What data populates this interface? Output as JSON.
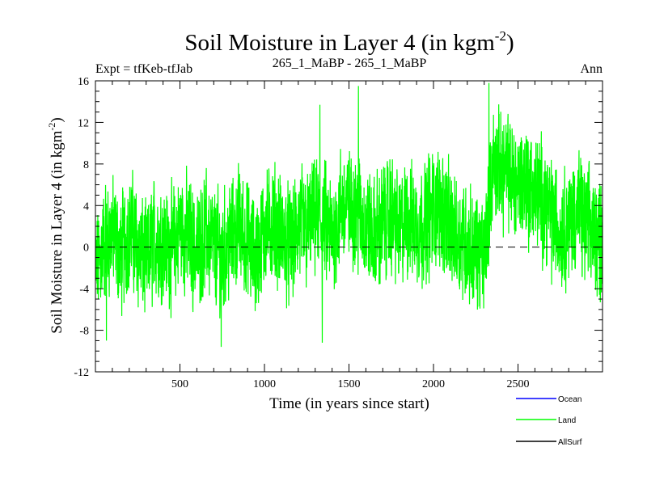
{
  "chart_data": {
    "type": "line",
    "title": "Soil Moisture in Layer 4 (in kgm",
    "title_sup": "-2",
    "title_end": ")",
    "left_label": "Expt = tfKeb-tfJab",
    "center_label": "265_1_MaBP - 265_1_MaBP",
    "right_label": "Ann",
    "xlabel": "Time (in years since start)",
    "ylabel": "Soil Moisture in Layer 4 (in kgm",
    "ylabel_sup": "-2",
    "ylabel_end": ")",
    "xlim": [
      0,
      3000
    ],
    "ylim": [
      -12,
      16
    ],
    "x_ticks": [
      500,
      1000,
      1500,
      2000,
      2500
    ],
    "y_ticks": [
      -12,
      -8,
      -4,
      0,
      4,
      8,
      12,
      16
    ],
    "reference_line": 0,
    "legend_position": "bottom-right",
    "series": [
      {
        "name": "Ocean",
        "color": "#0000ff",
        "values": []
      },
      {
        "name": "Land",
        "color": "#00ff00",
        "x": [
          0,
          50,
          100,
          150,
          200,
          250,
          300,
          350,
          400,
          450,
          500,
          550,
          600,
          650,
          700,
          750,
          800,
          850,
          900,
          950,
          1000,
          1050,
          1100,
          1150,
          1200,
          1250,
          1300,
          1350,
          1400,
          1450,
          1500,
          1550,
          1600,
          1650,
          1700,
          1750,
          1800,
          1850,
          1900,
          1950,
          2000,
          2050,
          2100,
          2150,
          2200,
          2250,
          2300,
          2350,
          2400,
          2450,
          2500,
          2550,
          2600,
          2650,
          2700,
          2750,
          2800,
          2850,
          2900,
          2950,
          3000
        ],
        "values": [
          -2.5,
          0.5,
          1.5,
          -1.0,
          2.0,
          0.0,
          -1.5,
          1.0,
          0.5,
          -0.5,
          2.0,
          1.0,
          -0.5,
          1.5,
          0.0,
          -1.0,
          1.0,
          2.0,
          0.5,
          -1.0,
          1.5,
          2.5,
          1.0,
          0.0,
          2.0,
          1.5,
          3.0,
          2.0,
          1.0,
          3.5,
          4.0,
          3.5,
          2.0,
          1.0,
          2.5,
          3.0,
          1.5,
          3.0,
          2.0,
          2.5,
          3.5,
          4.0,
          1.5,
          1.0,
          0.5,
          -0.5,
          -1.0,
          8.0,
          7.5,
          7.0,
          6.0,
          6.5,
          5.0,
          4.5,
          3.0,
          1.5,
          2.5,
          3.5,
          2.0,
          1.5,
          1.0
        ],
        "range_low": -9.8,
        "range_high": 15.8
      },
      {
        "name": "AllSurf",
        "color": "#000000",
        "values": []
      }
    ]
  }
}
